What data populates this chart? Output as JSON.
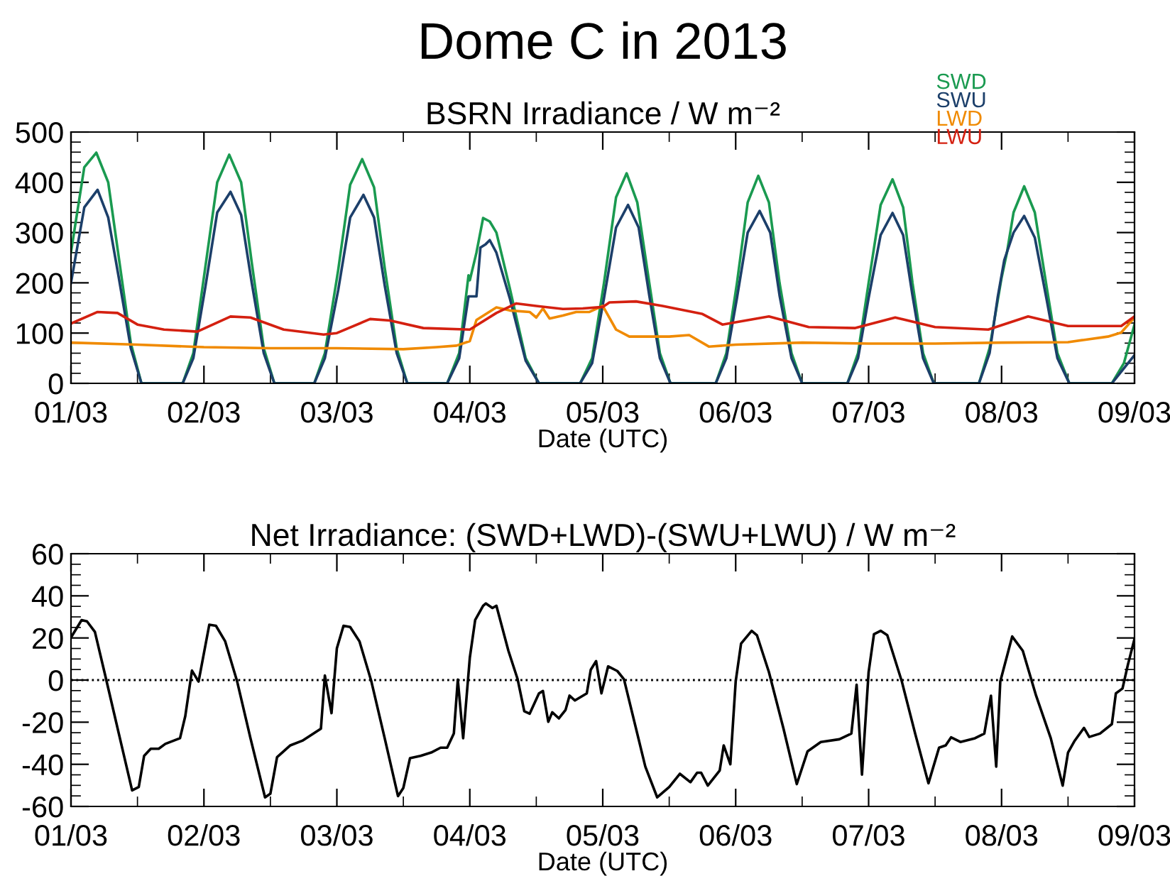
{
  "chart_data": [
    {
      "type": "line",
      "title": "Dome C in 2013",
      "subtitle": "BSRN Irradiance / W m⁻²",
      "xlabel": "Date (UTC)",
      "xlim": [
        "2013-03-01",
        "2013-03-09"
      ],
      "xticks": [
        {
          "value": "2013-03-01",
          "label": "01/03"
        },
        {
          "value": "2013-03-02",
          "label": "02/03"
        },
        {
          "value": "2013-03-03",
          "label": "03/03"
        },
        {
          "value": "2013-03-04",
          "label": "04/03"
        },
        {
          "value": "2013-03-05",
          "label": "05/03"
        },
        {
          "value": "2013-03-06",
          "label": "06/03"
        },
        {
          "value": "2013-03-07",
          "label": "07/03"
        },
        {
          "value": "2013-03-08",
          "label": "08/03"
        },
        {
          "value": "2013-03-09",
          "label": "09/03"
        }
      ],
      "ylim": [
        0,
        500
      ],
      "yticks": [
        0,
        100,
        200,
        300,
        400,
        500
      ],
      "grid": false,
      "legend": "top right",
      "series": [
        {
          "name": "SWD",
          "color": "#1a9a50",
          "x": [
            "2013-03-01T00:00",
            "2013-03-01T02:24",
            "2013-03-01T04:34",
            "2013-03-01T06:43",
            "2013-03-01T08:38",
            "2013-03-01T10:48",
            "2013-03-01T12:43",
            "2013-03-01T20:10",
            "2013-03-01T22:05",
            "2013-03-02T00:14",
            "2013-03-02T02:24",
            "2013-03-02T04:34",
            "2013-03-02T06:43",
            "2013-03-02T08:38",
            "2013-03-02T10:48",
            "2013-03-02T12:43",
            "2013-03-02T19:55",
            "2013-03-02T21:50",
            "2013-03-03T00:14",
            "2013-03-03T02:24",
            "2013-03-03T04:34",
            "2013-03-03T06:43",
            "2013-03-03T08:38",
            "2013-03-03T10:48",
            "2013-03-03T12:43",
            "2013-03-03T19:55",
            "2013-03-03T22:05",
            "2013-03-03T23:46",
            "2013-03-04T00:00",
            "2013-03-04T01:12",
            "2013-03-04T02:24",
            "2013-03-04T03:36",
            "2013-03-04T04:48",
            "2013-03-04T07:12",
            "2013-03-04T10:05",
            "2013-03-04T12:29",
            "2013-03-04T19:55",
            "2013-03-04T22:05",
            "2013-03-05T00:14",
            "2013-03-05T02:24",
            "2013-03-05T04:19",
            "2013-03-05T06:14",
            "2013-03-05T08:24",
            "2013-03-05T10:19",
            "2013-03-05T12:14",
            "2013-03-05T20:24",
            "2013-03-05T22:19",
            "2013-03-06T00:14",
            "2013-03-06T02:10",
            "2013-03-06T04:05",
            "2013-03-06T06:00",
            "2013-03-06T07:55",
            "2013-03-06T10:05",
            "2013-03-06T12:00",
            "2013-03-06T20:10",
            "2013-03-06T22:05",
            "2013-03-07T00:00",
            "2013-03-07T02:10",
            "2013-03-07T04:19",
            "2013-03-07T06:14",
            "2013-03-07T07:55",
            "2013-03-07T09:50",
            "2013-03-07T11:46",
            "2013-03-07T19:55",
            "2013-03-07T21:50",
            "2013-03-08T00:00",
            "2013-03-08T00:58",
            "2013-03-08T02:10",
            "2013-03-08T04:05",
            "2013-03-08T06:00",
            "2013-03-08T08:10",
            "2013-03-08T10:05",
            "2013-03-08T12:14",
            "2013-03-08T19:55",
            "2013-03-08T22:05",
            "2013-03-09T00:00"
          ],
          "values": [
            261,
            430,
            459,
            400,
            250,
            80,
            0,
            0,
            60,
            230,
            400,
            455,
            400,
            240,
            70,
            0,
            0,
            60,
            225,
            395,
            446,
            390,
            230,
            70,
            0,
            0,
            60,
            215,
            205,
            260,
            329,
            322,
            300,
            190,
            50,
            0,
            0,
            50,
            200,
            370,
            418,
            360,
            200,
            60,
            0,
            0,
            60,
            200,
            360,
            413,
            360,
            200,
            60,
            0,
            0,
            60,
            200,
            355,
            406,
            350,
            200,
            60,
            0,
            0,
            70,
            210,
            260,
            340,
            392,
            340,
            190,
            60,
            0,
            0,
            40,
            117
          ]
        },
        {
          "name": "SWU",
          "color": "#1c3f6a",
          "x": [
            "2013-03-01T00:00",
            "2013-03-01T02:24",
            "2013-03-01T04:48",
            "2013-03-01T06:43",
            "2013-03-01T08:38",
            "2013-03-01T10:48",
            "2013-03-01T12:43",
            "2013-03-01T20:10",
            "2013-03-01T22:05",
            "2013-03-02T00:14",
            "2013-03-02T02:24",
            "2013-03-02T04:48",
            "2013-03-02T06:43",
            "2013-03-02T08:38",
            "2013-03-02T10:48",
            "2013-03-02T12:43",
            "2013-03-02T19:55",
            "2013-03-02T21:50",
            "2013-03-03T00:14",
            "2013-03-03T02:24",
            "2013-03-03T04:48",
            "2013-03-03T06:43",
            "2013-03-03T08:38",
            "2013-03-03T10:48",
            "2013-03-03T12:43",
            "2013-03-03T19:55",
            "2013-03-03T22:05",
            "2013-03-03T23:46",
            "2013-03-04T01:12",
            "2013-03-04T01:55",
            "2013-03-04T02:53",
            "2013-03-04T03:36",
            "2013-03-04T04:48",
            "2013-03-04T07:12",
            "2013-03-04T10:05",
            "2013-03-04T12:29",
            "2013-03-04T19:55",
            "2013-03-04T22:05",
            "2013-03-05T00:14",
            "2013-03-05T02:24",
            "2013-03-05T04:34",
            "2013-03-05T06:29",
            "2013-03-05T08:24",
            "2013-03-05T10:19",
            "2013-03-05T12:14",
            "2013-03-05T20:24",
            "2013-03-05T22:19",
            "2013-03-06T00:14",
            "2013-03-06T02:10",
            "2013-03-06T04:19",
            "2013-03-06T06:14",
            "2013-03-06T07:55",
            "2013-03-06T10:05",
            "2013-03-06T12:00",
            "2013-03-06T20:10",
            "2013-03-06T22:05",
            "2013-03-07T00:00",
            "2013-03-07T02:10",
            "2013-03-07T04:19",
            "2013-03-07T06:14",
            "2013-03-07T07:55",
            "2013-03-07T09:50",
            "2013-03-07T11:46",
            "2013-03-07T19:55",
            "2013-03-07T21:50",
            "2013-03-07T23:17",
            "2013-03-08T00:29",
            "2013-03-08T02:10",
            "2013-03-08T04:05",
            "2013-03-08T06:00",
            "2013-03-08T08:10",
            "2013-03-08T10:05",
            "2013-03-08T12:14",
            "2013-03-08T19:55",
            "2013-03-08T22:05",
            "2013-03-09T00:00"
          ],
          "values": [
            200,
            350,
            385,
            330,
            210,
            70,
            0,
            0,
            50,
            190,
            340,
            381,
            335,
            200,
            60,
            0,
            0,
            50,
            185,
            330,
            375,
            330,
            195,
            60,
            0,
            0,
            50,
            173,
            173,
            270,
            277,
            285,
            260,
            170,
            45,
            0,
            0,
            40,
            170,
            310,
            355,
            310,
            175,
            50,
            0,
            0,
            50,
            170,
            300,
            343,
            300,
            175,
            50,
            0,
            0,
            50,
            170,
            295,
            339,
            295,
            175,
            50,
            0,
            0,
            60,
            170,
            245,
            300,
            333,
            290,
            165,
            50,
            0,
            0,
            30,
            56
          ]
        },
        {
          "name": "LWD",
          "color": "#f08a00",
          "x": [
            "2013-03-01T00:00",
            "2013-03-01T12:00",
            "2013-03-02T00:00",
            "2013-03-02T12:00",
            "2013-03-03T00:00",
            "2013-03-03T12:00",
            "2013-03-03T18:00",
            "2013-03-03T21:36",
            "2013-03-04T00:00",
            "2013-03-04T01:12",
            "2013-03-04T04:48",
            "2013-03-04T07:12",
            "2013-03-04T10:48",
            "2013-03-04T12:00",
            "2013-03-04T13:12",
            "2013-03-04T14:24",
            "2013-03-04T16:48",
            "2013-03-04T19:12",
            "2013-03-04T21:36",
            "2013-03-05T00:00",
            "2013-03-05T02:24",
            "2013-03-05T04:48",
            "2013-03-05T12:00",
            "2013-03-05T15:36",
            "2013-03-05T19:12",
            "2013-03-06T00:00",
            "2013-03-06T12:00",
            "2013-03-07T00:00",
            "2013-03-07T12:00",
            "2013-03-08T00:00",
            "2013-03-08T12:00",
            "2013-03-08T19:12",
            "2013-03-08T21:36",
            "2013-03-09T00:00"
          ],
          "values": [
            81,
            77,
            72,
            70,
            70,
            68,
            72,
            75,
            84,
            126,
            151,
            145,
            142,
            131,
            149,
            129,
            135,
            142,
            142,
            154,
            107,
            93,
            93,
            96,
            73,
            77,
            81,
            79,
            79,
            81,
            82,
            93,
            101,
            131
          ]
        },
        {
          "name": "LWU",
          "color": "#d42010",
          "x": [
            "2013-03-01T00:00",
            "2013-03-01T04:48",
            "2013-03-01T08:24",
            "2013-03-01T12:00",
            "2013-03-01T16:48",
            "2013-03-01T22:48",
            "2013-03-02T04:48",
            "2013-03-02T08:24",
            "2013-03-02T14:24",
            "2013-03-02T21:36",
            "2013-03-03T00:00",
            "2013-03-03T06:00",
            "2013-03-03T09:36",
            "2013-03-03T15:36",
            "2013-03-04T00:00",
            "2013-03-04T04:48",
            "2013-03-04T08:24",
            "2013-03-04T12:00",
            "2013-03-04T16:48",
            "2013-03-04T20:24",
            "2013-03-05T00:00",
            "2013-03-05T01:12",
            "2013-03-05T06:00",
            "2013-03-05T10:48",
            "2013-03-05T18:00",
            "2013-03-05T21:36",
            "2013-03-06T06:00",
            "2013-03-06T13:12",
            "2013-03-06T21:36",
            "2013-03-07T04:48",
            "2013-03-07T12:00",
            "2013-03-07T21:36",
            "2013-03-08T04:48",
            "2013-03-08T12:00",
            "2013-03-08T21:36",
            "2013-03-09T00:00"
          ],
          "values": [
            119,
            142,
            140,
            117,
            107,
            103,
            133,
            131,
            107,
            97,
            100,
            128,
            125,
            110,
            107,
            140,
            159,
            154,
            148,
            149,
            152,
            161,
            163,
            154,
            138,
            117,
            133,
            112,
            110,
            131,
            112,
            107,
            133,
            114,
            114,
            133
          ]
        }
      ]
    },
    {
      "type": "line",
      "title": "Net Irradiance: (SWD+LWD)-(SWU+LWU) / W m⁻²",
      "xlabel": "Date (UTC)",
      "xlim": [
        "2013-03-01",
        "2013-03-09"
      ],
      "xticks": [
        {
          "value": "2013-03-01",
          "label": "01/03"
        },
        {
          "value": "2013-03-02",
          "label": "02/03"
        },
        {
          "value": "2013-03-03",
          "label": "03/03"
        },
        {
          "value": "2013-03-04",
          "label": "04/03"
        },
        {
          "value": "2013-03-05",
          "label": "05/03"
        },
        {
          "value": "2013-03-06",
          "label": "06/03"
        },
        {
          "value": "2013-03-07",
          "label": "07/03"
        },
        {
          "value": "2013-03-08",
          "label": "08/03"
        },
        {
          "value": "2013-03-09",
          "label": "09/03"
        }
      ],
      "ylim": [
        -60,
        60
      ],
      "yticks": [
        -60,
        -40,
        -20,
        0,
        20,
        40,
        60
      ],
      "grid": false,
      "ref_lines": [
        {
          "axis": "y",
          "value": 0,
          "color": "#000000",
          "line_style": "dotted"
        }
      ],
      "series": [
        {
          "color": "#000000",
          "x": [
            "2013-03-01T00:00",
            "2013-03-01T01:55",
            "2013-03-01T02:53",
            "2013-03-01T04:19",
            "2013-03-01T06:14",
            "2013-03-01T08:38",
            "2013-03-01T11:02",
            "2013-03-01T12:14",
            "2013-03-01T13:12",
            "2013-03-01T14:24",
            "2013-03-01T15:50",
            "2013-03-01T17:02",
            "2013-03-01T19:41",
            "2013-03-01T20:38",
            "2013-03-01T21:50",
            "2013-03-01T23:02",
            "2013-03-02T00:58",
            "2013-03-02T02:10",
            "2013-03-02T03:50",
            "2013-03-02T06:00",
            "2013-03-02T08:24",
            "2013-03-02T11:02",
            "2013-03-02T12:00",
            "2013-03-02T13:12",
            "2013-03-02T15:36",
            "2013-03-02T17:46",
            "2013-03-02T21:07",
            "2013-03-02T21:50",
            "2013-03-02T23:02",
            "2013-03-03T00:00",
            "2013-03-03T01:12",
            "2013-03-03T02:24",
            "2013-03-03T04:05",
            "2013-03-03T06:14",
            "2013-03-03T08:38",
            "2013-03-03T11:02",
            "2013-03-03T12:00",
            "2013-03-03T13:12",
            "2013-03-03T15:07",
            "2013-03-03T17:02",
            "2013-03-03T18:43",
            "2013-03-03T19:55",
            "2013-03-03T21:07",
            "2013-03-03T21:50",
            "2013-03-03T22:48",
            "2013-03-04T00:00",
            "2013-03-04T00:58",
            "2013-03-04T02:24",
            "2013-03-04T02:53",
            "2013-03-04T04:05",
            "2013-03-04T04:48",
            "2013-03-04T06:58",
            "2013-03-04T08:38",
            "2013-03-04T09:50",
            "2013-03-04T10:48",
            "2013-03-04T12:29",
            "2013-03-04T13:12",
            "2013-03-04T14:10",
            "2013-03-04T14:53",
            "2013-03-04T16:05",
            "2013-03-04T17:17",
            "2013-03-04T18:00",
            "2013-03-04T18:58",
            "2013-03-04T21:07",
            "2013-03-04T21:50",
            "2013-03-04T22:48",
            "2013-03-04T23:46",
            "2013-03-05T00:58",
            "2013-03-05T02:38",
            "2013-03-05T03:50",
            "2013-03-05T07:41",
            "2013-03-05T09:50",
            "2013-03-05T12:00",
            "2013-03-05T13:55",
            "2013-03-05T15:50",
            "2013-03-05T17:02",
            "2013-03-05T17:46",
            "2013-03-05T18:58",
            "2013-03-05T21:07",
            "2013-03-05T21:50",
            "2013-03-05T23:02",
            "2013-03-06T00:00",
            "2013-03-06T00:58",
            "2013-03-06T02:53",
            "2013-03-06T03:50",
            "2013-03-06T06:00",
            "2013-03-06T08:38",
            "2013-03-06T11:02",
            "2013-03-06T12:58",
            "2013-03-06T15:22",
            "2013-03-06T18:43",
            "2013-03-06T20:53",
            "2013-03-06T21:50",
            "2013-03-06T22:48",
            "2013-03-07T00:00",
            "2013-03-07T00:58",
            "2013-03-07T02:10",
            "2013-03-07T03:22",
            "2013-03-07T06:00",
            "2013-03-07T08:24",
            "2013-03-07T10:48",
            "2013-03-07T12:43",
            "2013-03-07T13:55",
            "2013-03-07T14:53",
            "2013-03-07T16:34",
            "2013-03-07T19:12",
            "2013-03-07T20:53",
            "2013-03-07T22:05",
            "2013-03-07T23:02",
            "2013-03-07T23:46",
            "2013-03-08T01:55",
            "2013-03-08T03:50",
            "2013-03-08T06:14",
            "2013-03-08T08:53",
            "2013-03-08T11:02",
            "2013-03-08T12:00",
            "2013-03-08T13:12",
            "2013-03-08T14:53",
            "2013-03-08T15:50",
            "2013-03-08T17:46",
            "2013-03-08T19:55",
            "2013-03-08T20:38",
            "2013-03-08T21:50",
            "2013-03-08T22:48",
            "2013-03-09T00:00"
          ],
          "values": [
            20.2,
            28.5,
            27.9,
            22.9,
            1.6,
            -25.4,
            -52.4,
            -50.8,
            -36,
            -32.6,
            -32.6,
            -30.3,
            -27.6,
            -17.1,
            4.5,
            -0.7,
            26.3,
            25.8,
            18.4,
            -0.7,
            -27.6,
            -55.7,
            -53.9,
            -36.6,
            -31,
            -28.8,
            -23.1,
            2.2,
            -15.7,
            15.1,
            25.8,
            25.2,
            18.4,
            -0.7,
            -27.6,
            -55.1,
            -51.2,
            -37.1,
            -36,
            -34.4,
            -32.1,
            -32.1,
            -25.4,
            0.2,
            -27.6,
            10.6,
            28.5,
            35.3,
            36.4,
            34.2,
            35.3,
            13.9,
            0.4,
            -14.8,
            -16,
            -6.3,
            -5.2,
            -19.8,
            -15.3,
            -18.2,
            -14.2,
            -7.4,
            -9.7,
            -6.3,
            4.9,
            9.0,
            -6.3,
            6.5,
            4.3,
            0.4,
            -41.1,
            -55.7,
            -50.8,
            -44.5,
            -48.5,
            -44,
            -44,
            -50.1,
            -42.9,
            -31,
            -40,
            -0.7,
            17.3,
            23.4,
            21.3,
            3.8,
            -23.1,
            -49.4,
            -33.9,
            -29.4,
            -28.1,
            -25.4,
            -2.2,
            -44.9,
            3.8,
            21.8,
            23.4,
            21.3,
            -0.7,
            -25.4,
            -49,
            -32.1,
            -31,
            -27.2,
            -29.4,
            -27.6,
            -25.4,
            -7.4,
            -41.1,
            -0.7,
            20.7,
            13.9,
            -7.4,
            -27.6,
            -50.1,
            -34.4,
            -28.8,
            -22.7,
            -27,
            -25.4,
            -20.9,
            -6.3,
            -4,
            7.2,
            19.6
          ]
        }
      ]
    }
  ]
}
